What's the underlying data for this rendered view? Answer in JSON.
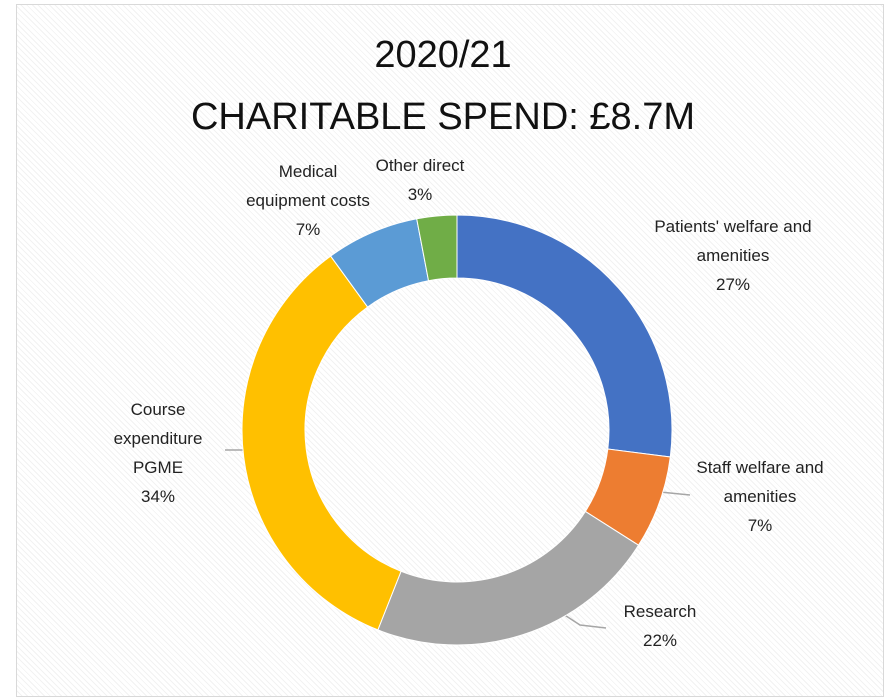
{
  "chart_data": {
    "type": "donut",
    "title": "2020/21",
    "subtitle": "CHARITABLE SPEND: £8.7M",
    "categories": [
      "Patients' welfare and amenities",
      "Staff welfare and amenities",
      "Research",
      "Course expenditure PGME",
      "Medical equipment costs",
      "Other direct"
    ],
    "values": [
      27,
      7,
      22,
      34,
      7,
      3
    ],
    "value_labels": [
      "27%",
      "7%",
      "22%",
      "34%",
      "7%",
      "3%"
    ],
    "colors": [
      "#4472c4",
      "#ed7d31",
      "#a5a5a5",
      "#ffc000",
      "#5b9bd5",
      "#70ad47"
    ]
  }
}
